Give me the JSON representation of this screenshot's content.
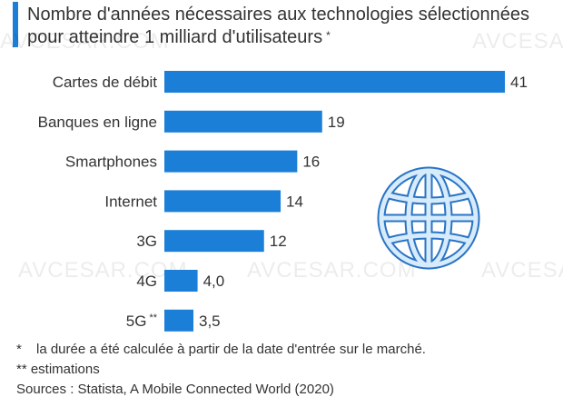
{
  "title": "Nombre d'années nécessaires aux technologies sélectionnées pour atteindre 1 milliard d'utilisateurs",
  "title_marker": "*",
  "colors": {
    "bar": "#1b7fd8",
    "accent": "#1b7fd8",
    "globe": "#cfe6f8",
    "globe_stroke": "#2a74c4"
  },
  "chart_data": {
    "type": "bar",
    "orientation": "horizontal",
    "title": "Nombre d'années nécessaires aux technologies sélectionnées pour atteindre 1 milliard d'utilisateurs",
    "categories": [
      "Cartes de débit",
      "Banques en ligne",
      "Smartphones",
      "Internet",
      "3G",
      "4G",
      "5G"
    ],
    "category_markers": [
      "",
      "",
      "",
      "",
      "",
      "",
      "**"
    ],
    "values": [
      41,
      19,
      16,
      14,
      12,
      4.0,
      3.5
    ],
    "value_labels": [
      "41",
      "19",
      "16",
      "14",
      "12",
      "4,0",
      "3,5"
    ],
    "xlim": [
      0,
      41
    ],
    "xlabel": "",
    "ylabel": "",
    "grid": false
  },
  "footnotes": [
    {
      "mark": "*",
      "text": "la durée a été calculée à partir de la date d'entrée sur le marché."
    },
    {
      "mark": "",
      "text": "** estimations"
    }
  ],
  "source": "Sources : Statista, A Mobile Connected World (2020)",
  "watermark": "AVCESAR.COM",
  "icons": {
    "globe": "globe-icon"
  }
}
